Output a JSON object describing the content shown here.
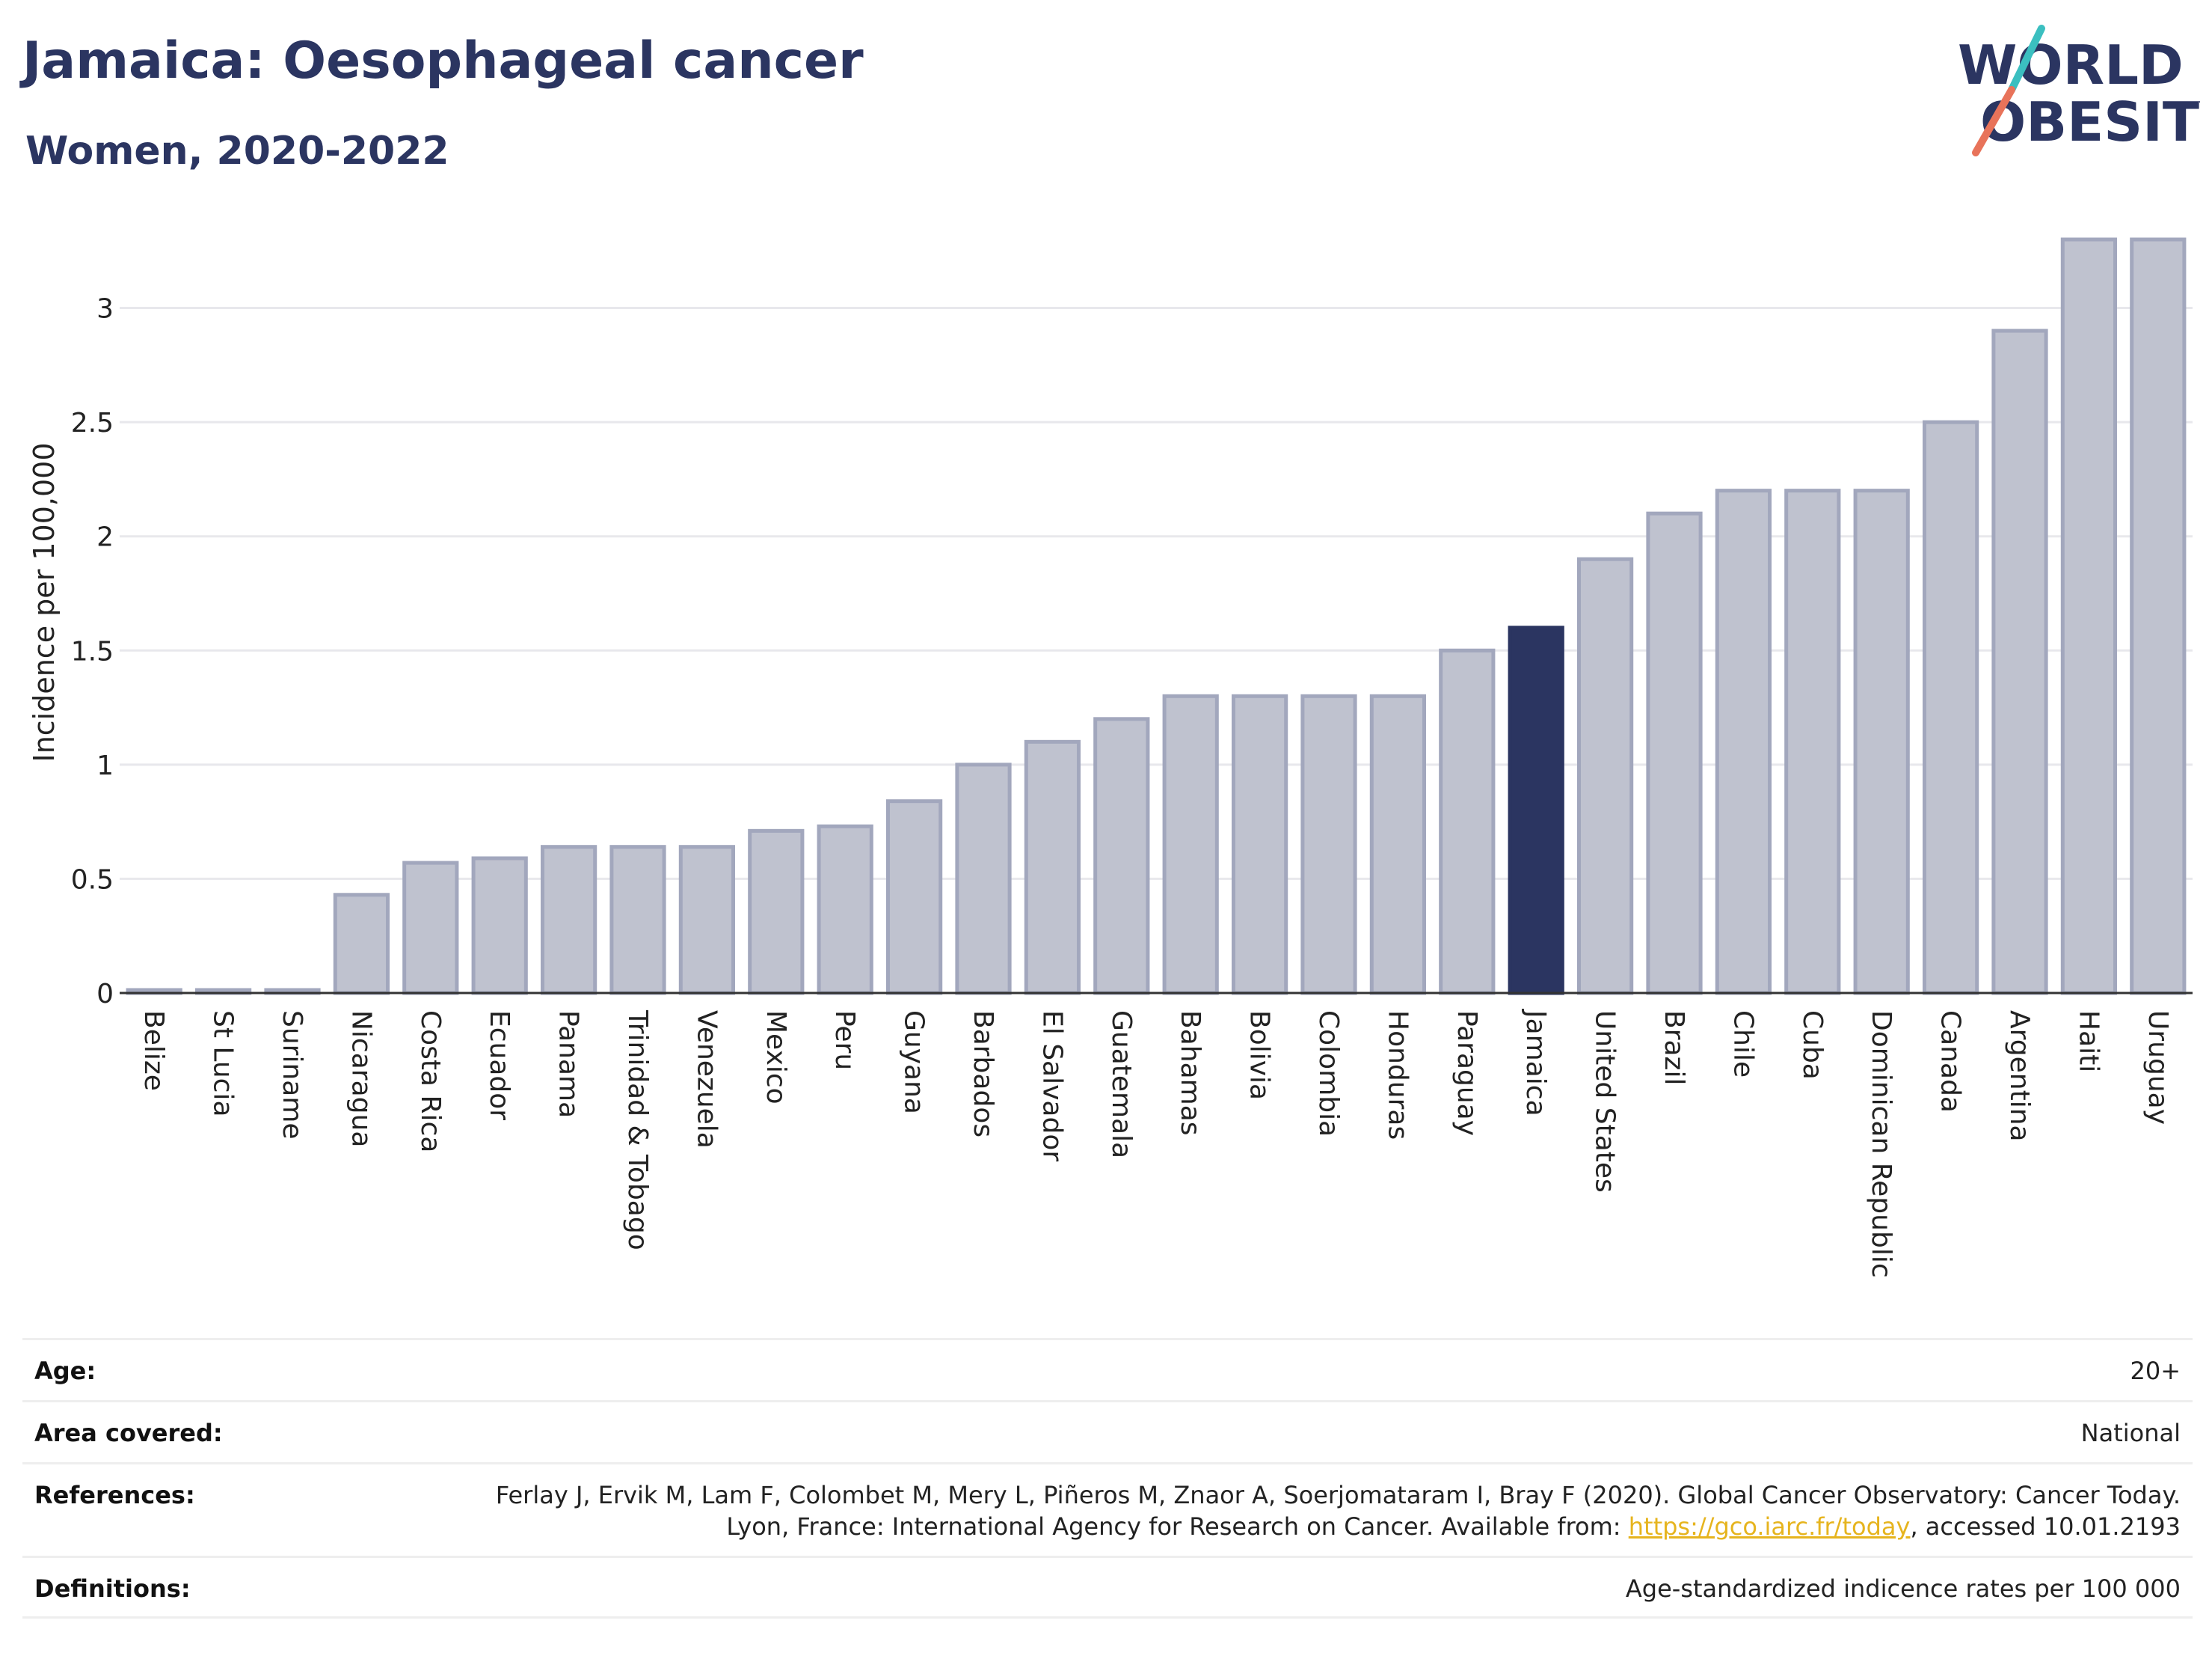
{
  "header": {
    "title": "Jamaica: Oesophageal cancer",
    "subtitle": "Women, 2020-2022"
  },
  "logo": {
    "line1": "WORLD",
    "line2": "OBESITY",
    "slash_colors": [
      "#3bbfc0",
      "#e8735a"
    ],
    "text_color": "#2b3561"
  },
  "chart_data": {
    "type": "bar",
    "ylabel": "Incidence per 100,000",
    "xlabel": "",
    "ylim": [
      0,
      3.3
    ],
    "yticks": [
      0,
      0.5,
      1,
      1.5,
      2,
      2.5,
      3
    ],
    "ytick_labels": [
      "0",
      "0.5",
      "1",
      "1.5",
      "2",
      "2.5",
      "3"
    ],
    "grid": true,
    "highlight": "Jamaica",
    "colors": {
      "bar_fill": "#bfc2cf",
      "bar_stroke": "#a2a7bd",
      "highlight": "#2b3561",
      "grid": "#e8e8ec"
    },
    "categories": [
      "Belize",
      "St Lucia",
      "Suriname",
      "Nicaragua",
      "Costa Rica",
      "Ecuador",
      "Panama",
      "Trinidad & Tobago",
      "Venezuela",
      "Mexico",
      "Peru",
      "Guyana",
      "Barbados",
      "El Salvador",
      "Guatemala",
      "Bahamas",
      "Bolivia",
      "Colombia",
      "Honduras",
      "Paraguay",
      "Jamaica",
      "United States",
      "Brazil",
      "Chile",
      "Cuba",
      "Dominican Republic",
      "Canada",
      "Argentina",
      "Haiti",
      "Uruguay"
    ],
    "values": [
      0,
      0,
      0,
      0.43,
      0.57,
      0.59,
      0.64,
      0.64,
      0.64,
      0.71,
      0.73,
      0.84,
      1.0,
      1.1,
      1.2,
      1.3,
      1.3,
      1.3,
      1.3,
      1.5,
      1.6,
      1.9,
      2.1,
      2.2,
      2.2,
      2.2,
      2.5,
      2.9,
      3.3,
      3.3
    ]
  },
  "info": {
    "age_label": "Age:",
    "age_value": "20+",
    "area_label": "Area covered:",
    "area_value": "National",
    "references_label": "References:",
    "references_text_1": "Ferlay J, Ervik M, Lam F, Colombet M, Mery L, Piñeros M, Znaor A, Soerjomataram I, Bray F (2020). Global Cancer Observatory: Cancer Today. Lyon, France: International Agency for Research on Cancer. Available from: ",
    "references_link": "https://gco.iarc.fr/today",
    "references_text_2": ", accessed 10.01.2193",
    "definitions_label": "Definitions:",
    "definitions_value": "Age-standardized indicence rates per 100 000"
  }
}
